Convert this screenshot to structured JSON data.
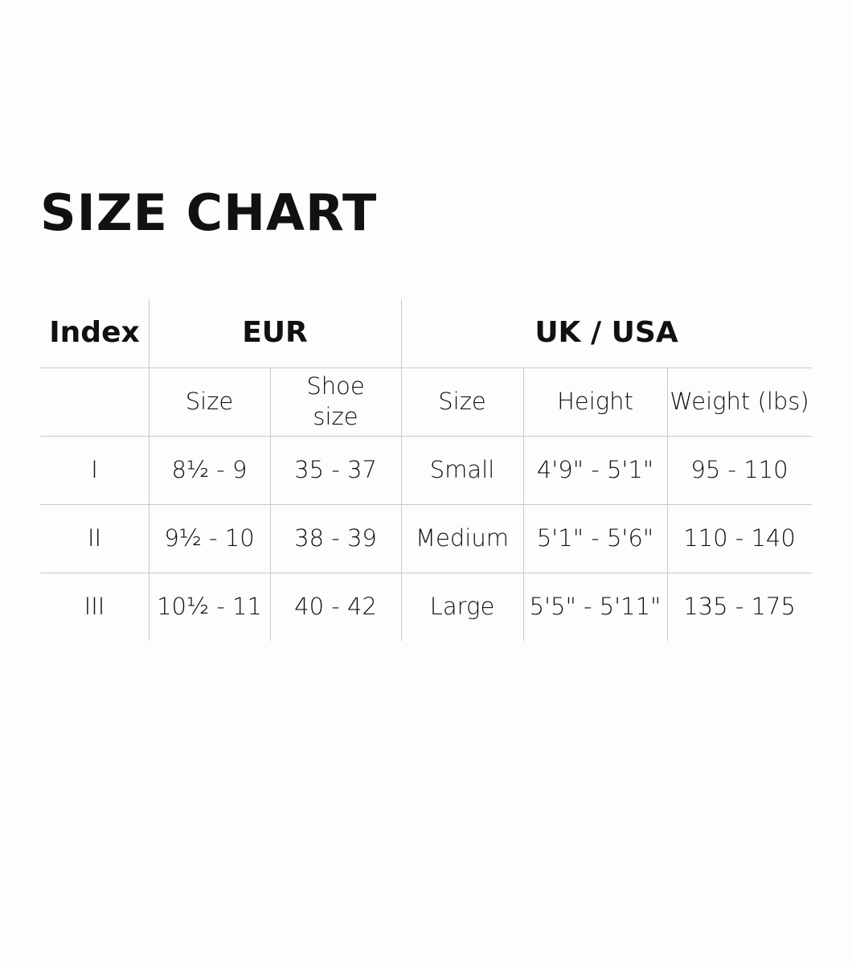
{
  "title": "SIZE CHART",
  "table": {
    "group_headers": [
      "Index",
      "EUR",
      "UK / USA"
    ],
    "sub_headers": [
      "",
      "Size",
      "Shoe size",
      "Size",
      "Height",
      "Weight (lbs)"
    ],
    "rows": [
      [
        "I",
        "8½ - 9",
        "35 - 37",
        "Small",
        "4'9\" - 5'1\"",
        "95 - 110"
      ],
      [
        "II",
        "9½ - 10",
        "38 - 39",
        "Medium",
        "5'1\" - 5'6\"",
        "110 - 140"
      ],
      [
        "III",
        "10½ - 11",
        "40 - 42",
        "Large",
        "5'5\" - 5'11\"",
        "135 - 175"
      ]
    ]
  }
}
